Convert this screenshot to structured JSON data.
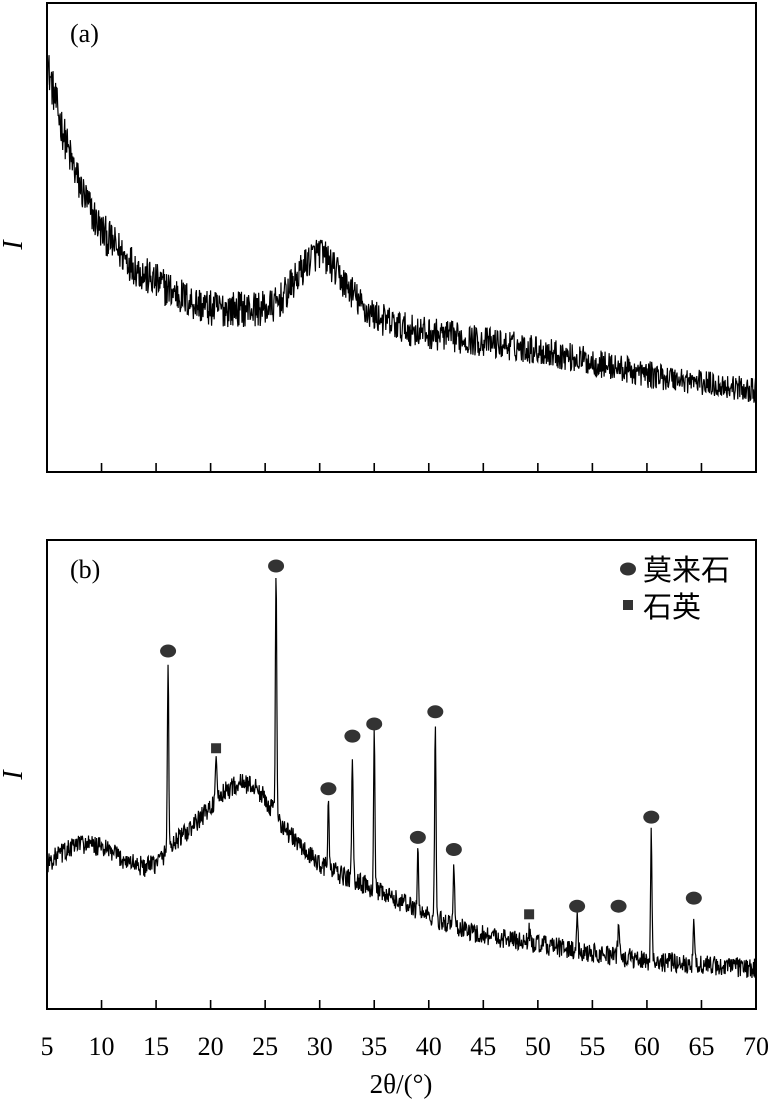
{
  "chart_data": [
    {
      "panel_label": "(a)",
      "type": "line",
      "ylabel": "I",
      "xlabel": "",
      "xlim": [
        5,
        70
      ],
      "ylim": [
        0,
        100
      ],
      "x_ticks": [
        5,
        10,
        15,
        20,
        25,
        30,
        35,
        40,
        45,
        50,
        55,
        60,
        65,
        70
      ],
      "show_tick_labels": false,
      "grid": false,
      "noise_amplitude": 5,
      "series": [
        {
          "x": [
            5,
            6,
            7,
            8,
            9,
            10,
            12,
            14,
            16,
            18,
            20,
            22,
            24,
            25,
            26,
            27,
            28,
            29,
            30,
            31,
            32,
            33,
            34,
            36,
            38,
            40,
            45,
            50,
            55,
            60,
            65,
            70
          ],
          "y": [
            92,
            80,
            70,
            62,
            56,
            51,
            45,
            40,
            37,
            34,
            32,
            32,
            32,
            32,
            33,
            36,
            40,
            44,
            46,
            43,
            39,
            36,
            32,
            29,
            27,
            26,
            24,
            22,
            19,
            16,
            14,
            12
          ]
        }
      ]
    },
    {
      "panel_label": "(b)",
      "type": "line",
      "ylabel": "I",
      "xlabel": "2θ/(°)",
      "xlim": [
        5,
        70
      ],
      "ylim": [
        0,
        100
      ],
      "x_ticks": [
        5,
        10,
        15,
        20,
        25,
        30,
        35,
        40,
        45,
        50,
        55,
        60,
        65,
        70
      ],
      "x_tick_labels": [
        "5",
        "10",
        "15",
        "20",
        "25",
        "30",
        "35",
        "40",
        "45",
        "50",
        "55",
        "60",
        "65",
        "70"
      ],
      "show_tick_labels": true,
      "grid": false,
      "legend_position": "top-right",
      "noise_amplitude": 2.5,
      "legend": [
        {
          "marker": "circle",
          "label": "莫来石"
        },
        {
          "marker": "square",
          "label": "石英"
        }
      ],
      "series": [
        {
          "x": [
            5,
            6,
            8,
            10,
            12,
            14,
            15,
            16,
            17,
            18,
            19,
            20,
            21,
            22,
            23,
            24,
            25,
            26,
            27,
            28,
            29,
            30,
            32,
            34,
            36,
            38,
            40,
            42,
            44,
            46,
            48,
            50,
            55,
            60,
            65,
            70
          ],
          "y": [
            30,
            32,
            35,
            34,
            31,
            29,
            30,
            33,
            36,
            38,
            41,
            44,
            47,
            49,
            50,
            49,
            46,
            42,
            38,
            35,
            32,
            30,
            27,
            25,
            22,
            20,
            17,
            15,
            13,
            12,
            11,
            10,
            8,
            6,
            5,
            4
          ]
        }
      ],
      "peaks": [
        {
          "x": 16.1,
          "y": 79,
          "phase": "mullite"
        },
        {
          "x": 20.5,
          "y": 55,
          "phase": "quartz"
        },
        {
          "x": 26.0,
          "y": 100,
          "phase": "mullite"
        },
        {
          "x": 30.8,
          "y": 45,
          "phase": "mullite"
        },
        {
          "x": 33.0,
          "y": 58,
          "phase": "mullite"
        },
        {
          "x": 35.0,
          "y": 61,
          "phase": "mullite"
        },
        {
          "x": 39.0,
          "y": 33,
          "phase": "mullite"
        },
        {
          "x": 40.6,
          "y": 64,
          "phase": "mullite"
        },
        {
          "x": 42.3,
          "y": 30,
          "phase": "mullite"
        },
        {
          "x": 49.2,
          "y": 14,
          "phase": "quartz"
        },
        {
          "x": 53.6,
          "y": 16,
          "phase": "mullite"
        },
        {
          "x": 57.4,
          "y": 16,
          "phase": "mullite"
        },
        {
          "x": 60.4,
          "y": 38,
          "phase": "mullite"
        },
        {
          "x": 64.3,
          "y": 18,
          "phase": "mullite"
        }
      ]
    }
  ]
}
